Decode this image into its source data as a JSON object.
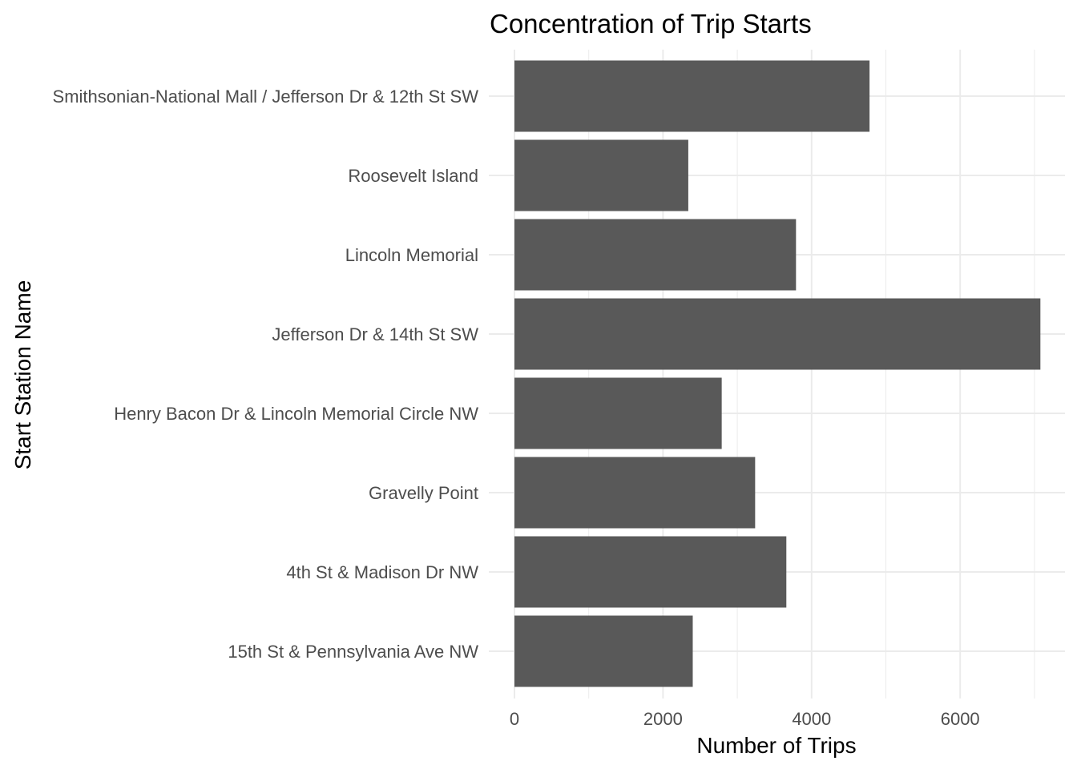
{
  "chart_data": {
    "type": "bar",
    "orientation": "horizontal",
    "title": "Concentration of Trip Starts",
    "xlabel": "Number of Trips",
    "ylabel": "Start Station Name",
    "categories": [
      "15th St & Pennsylvania Ave NW",
      "4th St & Madison Dr NW",
      "Gravelly Point",
      "Henry Bacon Dr & Lincoln Memorial Circle NW",
      "Jefferson Dr & 14th St SW",
      "Lincoln Memorial",
      "Roosevelt Island",
      "Smithsonian-National Mall / Jefferson Dr & 12th St SW"
    ],
    "values": [
      2400,
      3660,
      3240,
      2790,
      7080,
      3790,
      2340,
      4780
    ],
    "xlim": [
      0,
      7400
    ],
    "xticks": [
      0,
      2000,
      4000,
      6000
    ],
    "xtick_labels": [
      "0",
      "2000",
      "4000",
      "6000"
    ],
    "grid": true,
    "colors": {
      "bar": "#595959",
      "grid": "#ebebeb",
      "tick_text": "#4d4d4d"
    }
  }
}
